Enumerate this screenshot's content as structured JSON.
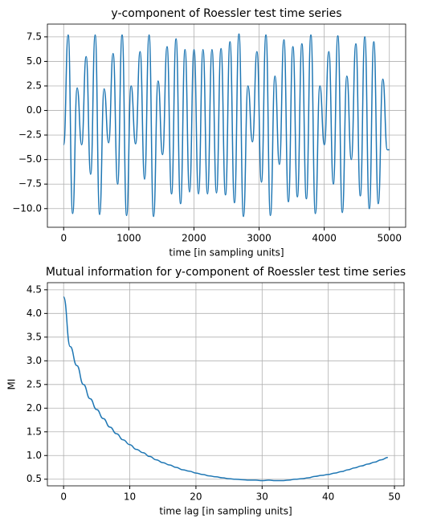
{
  "chart_data": [
    {
      "type": "line",
      "title": "y-component of Roessler test time series",
      "xlabel": "time [in sampling units]",
      "color": "#1f77b4",
      "grid": true,
      "x": [
        0,
        69,
        138,
        207,
        276,
        345,
        414,
        483,
        552,
        621,
        690,
        759,
        828,
        897,
        966,
        1035,
        1104,
        1173,
        1242,
        1311,
        1380,
        1449,
        1518,
        1587,
        1656,
        1725,
        1794,
        1863,
        1932,
        2001,
        2070,
        2139,
        2208,
        2277,
        2346,
        2415,
        2484,
        2553,
        2622,
        2691,
        2760,
        2829,
        2898,
        2967,
        3036,
        3105,
        3174,
        3243,
        3312,
        3381,
        3450,
        3519,
        3588,
        3657,
        3726,
        3795,
        3864,
        3933,
        4002,
        4071,
        4140,
        4209,
        4278,
        4347,
        4416,
        4485,
        4554,
        4623,
        4692,
        4761,
        4830,
        4899,
        4968,
        5000
      ],
      "values": [
        -3.5,
        7.7,
        -10.5,
        2.3,
        -3.5,
        5.5,
        -6.5,
        7.7,
        -10.6,
        2.2,
        -3.3,
        5.8,
        -7.5,
        7.7,
        -10.7,
        2.5,
        -3.4,
        6.0,
        -7.0,
        7.7,
        -10.8,
        3.0,
        -4.5,
        6.5,
        -8.5,
        7.3,
        -9.5,
        6.2,
        -8.3,
        6.2,
        -8.5,
        6.2,
        -8.5,
        6.2,
        -8.4,
        6.3,
        -8.6,
        7.0,
        -9.4,
        7.8,
        -10.8,
        2.5,
        -3.2,
        6.0,
        -7.3,
        7.7,
        -10.7,
        3.5,
        -5.5,
        7.2,
        -9.3,
        6.5,
        -8.8,
        6.8,
        -9.0,
        7.7,
        -10.5,
        2.5,
        -3.5,
        6.0,
        -7.5,
        7.6,
        -10.4,
        3.5,
        -5.0,
        6.8,
        -8.7,
        7.5,
        -10.0,
        7.0,
        -9.5,
        3.2,
        -4.0,
        -4.0
      ],
      "xlim": [
        -250,
        5250
      ],
      "xticks": [
        0,
        1000,
        2000,
        3000,
        4000,
        5000
      ],
      "ylim": [
        -11.9,
        8.8
      ],
      "yticks": [
        {
          "value": -10,
          "label": "−10.0"
        },
        {
          "value": -7.5,
          "label": "−7.5"
        },
        {
          "value": -5,
          "label": "−5.0"
        },
        {
          "value": -2.5,
          "label": "−2.5"
        },
        {
          "value": 0,
          "label": "0.0"
        },
        2.5,
        {
          "value": 5,
          "label": "5.0"
        },
        7.5
      ]
    },
    {
      "type": "line",
      "title": "Mutual information for y-component of Roessler test time series",
      "xlabel": "time lag [in sampling units]",
      "ylabel": "MI",
      "color": "#1f77b4",
      "grid": true,
      "x": [
        0,
        1,
        2,
        3,
        4,
        5,
        6,
        7,
        8,
        9,
        10,
        11,
        12,
        13,
        14,
        15,
        16,
        17,
        18,
        19,
        20,
        21,
        22,
        23,
        24,
        25,
        26,
        27,
        28,
        29,
        30,
        31,
        32,
        33,
        34,
        35,
        36,
        37,
        38,
        39,
        40,
        41,
        42,
        43,
        44,
        45,
        46,
        47,
        48,
        49
      ],
      "values": [
        4.35,
        3.3,
        2.9,
        2.5,
        2.2,
        1.97,
        1.78,
        1.6,
        1.46,
        1.33,
        1.23,
        1.13,
        1.06,
        0.98,
        0.91,
        0.85,
        0.8,
        0.75,
        0.7,
        0.67,
        0.63,
        0.6,
        0.57,
        0.55,
        0.53,
        0.51,
        0.5,
        0.49,
        0.48,
        0.48,
        0.47,
        0.48,
        0.47,
        0.47,
        0.48,
        0.5,
        0.51,
        0.53,
        0.56,
        0.58,
        0.6,
        0.63,
        0.66,
        0.7,
        0.74,
        0.78,
        0.82,
        0.86,
        0.91,
        0.96
      ],
      "xlim": [
        -2.45,
        51.45
      ],
      "xticks": [
        0,
        10,
        20,
        30,
        40,
        50
      ],
      "ylim": [
        0.36,
        4.65
      ],
      "yticks": [
        0.5,
        {
          "value": 1,
          "label": "1.0"
        },
        1.5,
        {
          "value": 2,
          "label": "2.0"
        },
        2.5,
        {
          "value": 3,
          "label": "3.0"
        },
        3.5,
        {
          "value": 4,
          "label": "4.0"
        },
        4.5
      ]
    }
  ]
}
